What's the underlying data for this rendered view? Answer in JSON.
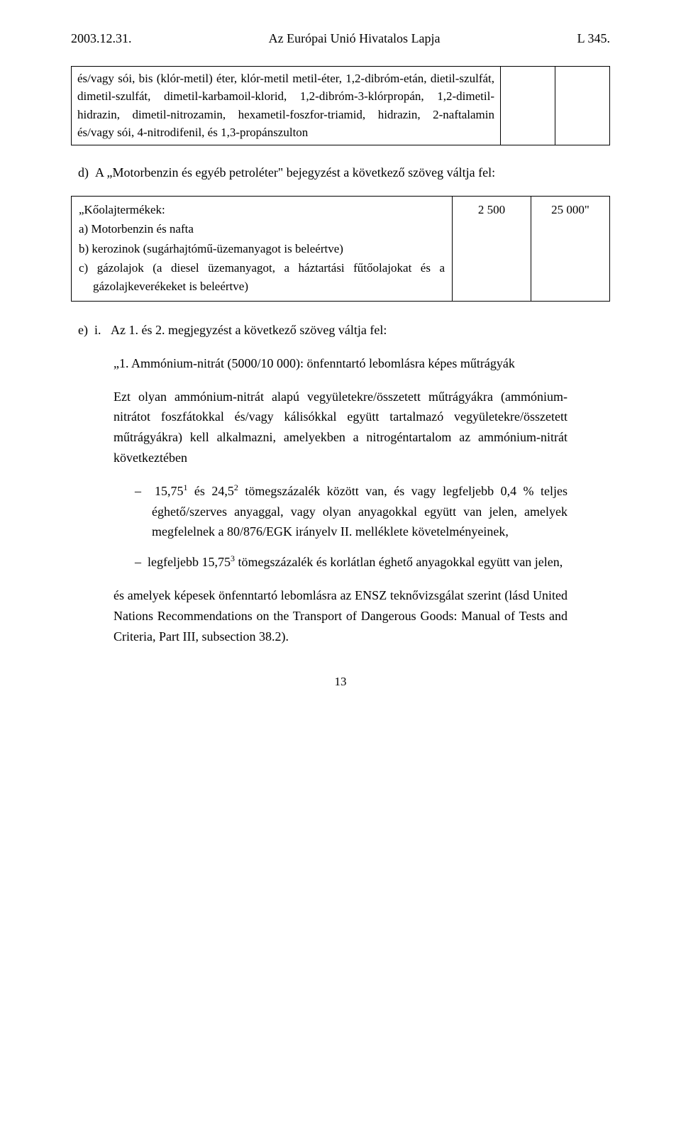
{
  "header": {
    "left": "2003.12.31.",
    "center": "Az Európai Unió Hivatalos Lapja",
    "right": "L 345."
  },
  "table1": {
    "cell_text": "és/vagy sói, bis (klór-metil) éter, klór-metil metil-éter, 1,2-dibróm-etán, dietil-szulfát, dimetil-szulfát, dimetil-karbamoil-klorid, 1,2-dibróm-3-klórpropán, 1,2-dimetil-hidrazin, dimetil-nitrozamin, hexametil-foszfor-triamid, hidrazin, 2-naftalamin és/vagy sói, 4-nitrodifenil, és 1,3-propánszulton",
    "col2": "",
    "col3": ""
  },
  "item_d": {
    "prefix": "d)",
    "text": "A „Motorbenzin és egyéb petrol­éter\" bejegyzést a következő szöveg váltja fel:"
  },
  "table2": {
    "title": "„Kőolajtermékek:",
    "a": "a) Motorbenzin és nafta",
    "b": "b) kerozinok (sugárhajtómű-üzemanyagot is beleértve)",
    "c": "c) gázolajok (a diesel üzemanyagot, a háztartási fűtő­olajokat és a gázolajkeverékeket is beleértve)",
    "val1": "2 500",
    "val2": "25 000\""
  },
  "item_e": {
    "prefix": "e)",
    "sub_i": "i.",
    "text": "Az 1. és 2. megjegyzést a következő szöveg váltja fel:"
  },
  "q1_text": "„1. Ammónium-nitrát (5000/10 000): önfenntartó lebomlásra képes műtrágyák",
  "block_ezt": "Ezt olyan ammónium-nitrát alapú vegyületekre/összetett műtrágyákra (ammónium-nitrátot foszfátokkal és/vagy kálisókkal együtt tartalmazó vegyületekre/összetett műtrágyákra) kell alkalmazni, amelyekben a nitrogéntartalom az ammónium-nitrát következtében",
  "dash1": {
    "text_before_sup1": "15,75",
    "sup1": "1",
    "text_between": " és 24,5",
    "sup2": "2",
    "text_after": " tömegszázalék között van, és vagy legfeljebb 0,4 % teljes éghető/szerves anyaggal, vagy olyan anyagokkal együtt van jelen, amelyek megfelelnek a 80/876/EGK irányelv II. melléklete követelményeinek,"
  },
  "dash2": {
    "text_before": "legfeljebb 15,75",
    "sup": "3",
    "text_after": " tömegszázalék és korlátlan éghető anyagokkal együtt van jelen,"
  },
  "block_amelyek": "és amelyek képesek önfenntartó lebomlásra az ENSZ teknővizsgálat szerint (lásd United Nations Recommendations on the Transport of Dangerous Goods: Manual of Tests and Criteria, Part III, subsection 38.2).",
  "page_number": "13"
}
